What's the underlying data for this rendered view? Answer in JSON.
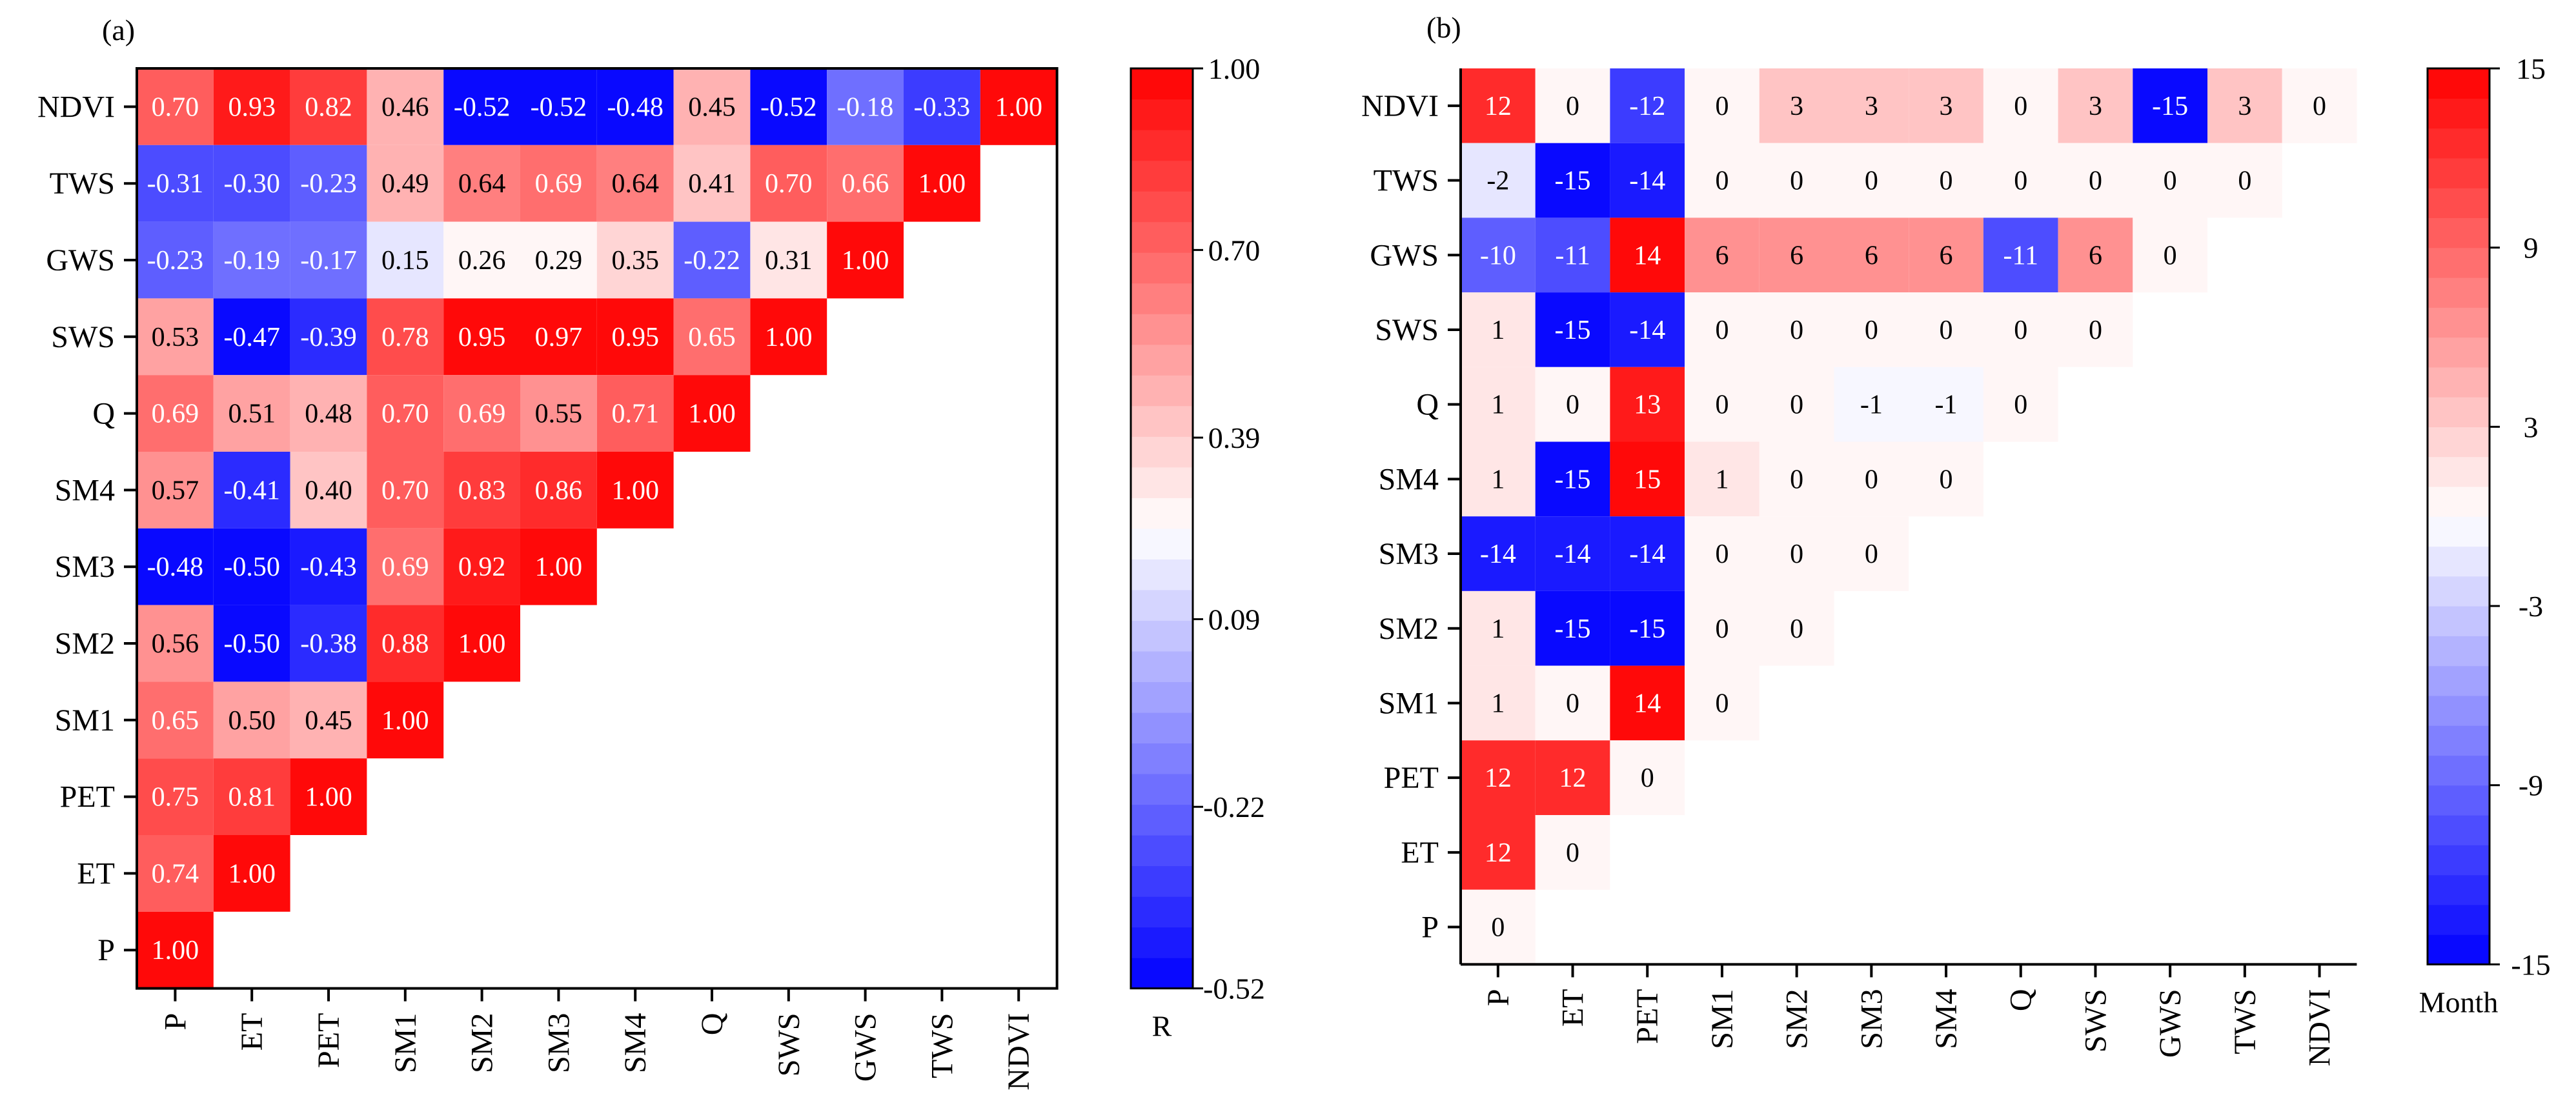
{
  "chart_data": [
    {
      "type": "heatmap",
      "panel_label": "(a)",
      "x_categories": [
        "P",
        "ET",
        "PET",
        "SM1",
        "SM2",
        "SM3",
        "SM4",
        "Q",
        "SWS",
        "GWS",
        "TWS",
        "NDVI"
      ],
      "y_categories": [
        "NDVI",
        "TWS",
        "GWS",
        "SWS",
        "Q",
        "SM4",
        "SM3",
        "SM2",
        "SM1",
        "PET",
        "ET",
        "P"
      ],
      "values": [
        [
          "0.70",
          "0.93",
          "0.82",
          "0.46",
          "-0.52",
          "-0.52",
          "-0.48",
          "0.45",
          "-0.52",
          "-0.18",
          "-0.33",
          "1.00"
        ],
        [
          "-0.31",
          "-0.30",
          "-0.23",
          "0.49",
          "0.64",
          "0.69",
          "0.64",
          "0.41",
          "0.70",
          "0.66",
          "1.00"
        ],
        [
          "-0.23",
          "-0.19",
          "-0.17",
          "0.15",
          "0.26",
          "0.29",
          "0.35",
          "-0.22",
          "0.31",
          "1.00"
        ],
        [
          "0.53",
          "-0.47",
          "-0.39",
          "0.78",
          "0.95",
          "0.97",
          "0.95",
          "0.65",
          "1.00"
        ],
        [
          "0.69",
          "0.51",
          "0.48",
          "0.70",
          "0.69",
          "0.55",
          "0.71",
          "1.00"
        ],
        [
          "0.57",
          "-0.41",
          "0.40",
          "0.70",
          "0.83",
          "0.86",
          "1.00"
        ],
        [
          "-0.48",
          "-0.50",
          "-0.43",
          "0.69",
          "0.92",
          "1.00"
        ],
        [
          "0.56",
          "-0.50",
          "-0.38",
          "0.88",
          "1.00"
        ],
        [
          "0.65",
          "0.50",
          "0.45",
          "1.00"
        ],
        [
          "0.75",
          "0.81",
          "1.00"
        ],
        [
          "0.74",
          "1.00"
        ],
        [
          "1.00"
        ]
      ],
      "colorbar": {
        "title": "R",
        "min": -0.52,
        "max": 1.0,
        "center": 0.24,
        "ticks": [
          "1.00",
          "0.70",
          "0.39",
          "0.09",
          "-0.22",
          "-0.52"
        ],
        "tick_values": [
          1.0,
          0.7,
          0.39,
          0.09,
          -0.22,
          -0.52
        ],
        "colors": {
          "low": "#0000ff",
          "mid": "#ffffff",
          "high": "#ff0000"
        },
        "steps": 30
      }
    },
    {
      "type": "heatmap",
      "panel_label": "(b)",
      "x_categories": [
        "P",
        "ET",
        "PET",
        "SM1",
        "SM2",
        "SM3",
        "SM4",
        "Q",
        "SWS",
        "GWS",
        "TWS",
        "NDVI"
      ],
      "y_categories": [
        "NDVI",
        "TWS",
        "GWS",
        "SWS",
        "Q",
        "SM4",
        "SM3",
        "SM2",
        "SM1",
        "PET",
        "ET",
        "P"
      ],
      "values": [
        [
          "12",
          "0",
          "-12",
          "0",
          "3",
          "3",
          "3",
          "0",
          "3",
          "-15",
          "3",
          "0"
        ],
        [
          "-2",
          "-15",
          "-14",
          "0",
          "0",
          "0",
          "0",
          "0",
          "0",
          "0",
          "0"
        ],
        [
          "-10",
          "-11",
          "14",
          "6",
          "6",
          "6",
          "6",
          "-11",
          "6",
          "0"
        ],
        [
          "1",
          "-15",
          "-14",
          "0",
          "0",
          "0",
          "0",
          "0",
          "0"
        ],
        [
          "1",
          "0",
          "13",
          "0",
          "0",
          "-1",
          "-1",
          "0"
        ],
        [
          "1",
          "-15",
          "15",
          "1",
          "0",
          "0",
          "0"
        ],
        [
          "-14",
          "-14",
          "-14",
          "0",
          "0",
          "0"
        ],
        [
          "1",
          "-15",
          "-15",
          "0",
          "0"
        ],
        [
          "1",
          "0",
          "14",
          "0"
        ],
        [
          "12",
          "12",
          "0"
        ],
        [
          "12",
          "0"
        ],
        [
          "0"
        ]
      ],
      "colorbar": {
        "title": "Month",
        "min": -15,
        "max": 15,
        "center": 0,
        "ticks": [
          "15",
          "9",
          "3",
          "-3",
          "-9",
          "-15"
        ],
        "tick_values": [
          15,
          9,
          3,
          -3,
          -9,
          -15
        ],
        "colors": {
          "low": "#0000ff",
          "mid": "#ffffff",
          "high": "#ff0000"
        },
        "steps": 30
      }
    }
  ]
}
